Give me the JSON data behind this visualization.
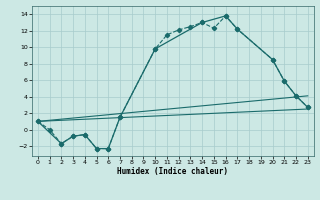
{
  "xlabel": "Humidex (Indice chaleur)",
  "xlim": [
    -0.5,
    23.5
  ],
  "ylim": [
    -3.2,
    15.0
  ],
  "xticks": [
    0,
    1,
    2,
    3,
    4,
    5,
    6,
    7,
    8,
    9,
    10,
    11,
    12,
    13,
    14,
    15,
    16,
    17,
    18,
    19,
    20,
    21,
    22,
    23
  ],
  "yticks": [
    -2,
    0,
    2,
    4,
    6,
    8,
    10,
    12,
    14
  ],
  "bg_color": "#cce8e4",
  "line_color": "#1a6b6b",
  "grid_color": "#a8cccc",
  "line1_x": [
    0,
    1,
    2,
    3,
    4,
    5,
    6,
    7,
    10,
    11,
    12,
    13,
    14,
    15,
    16,
    17,
    20,
    21,
    22,
    23
  ],
  "line1_y": [
    1,
    0,
    -1.7,
    -0.8,
    -0.6,
    -2.3,
    -2.3,
    1.5,
    9.8,
    11.5,
    12.1,
    12.5,
    13.0,
    12.3,
    13.8,
    12.2,
    8.5,
    5.9,
    4.1,
    2.7
  ],
  "line2_x": [
    0,
    2,
    3,
    4,
    5,
    6,
    7,
    10,
    14,
    16,
    17,
    20,
    21,
    22,
    23
  ],
  "line2_y": [
    1,
    -1.7,
    -0.8,
    -0.6,
    -2.3,
    -2.3,
    1.5,
    9.8,
    13.0,
    13.8,
    12.2,
    8.5,
    5.9,
    4.1,
    2.7
  ],
  "line3_x": [
    0,
    23
  ],
  "line3_y": [
    1,
    4.1
  ],
  "line4_x": [
    0,
    23
  ],
  "line4_y": [
    1,
    2.5
  ]
}
